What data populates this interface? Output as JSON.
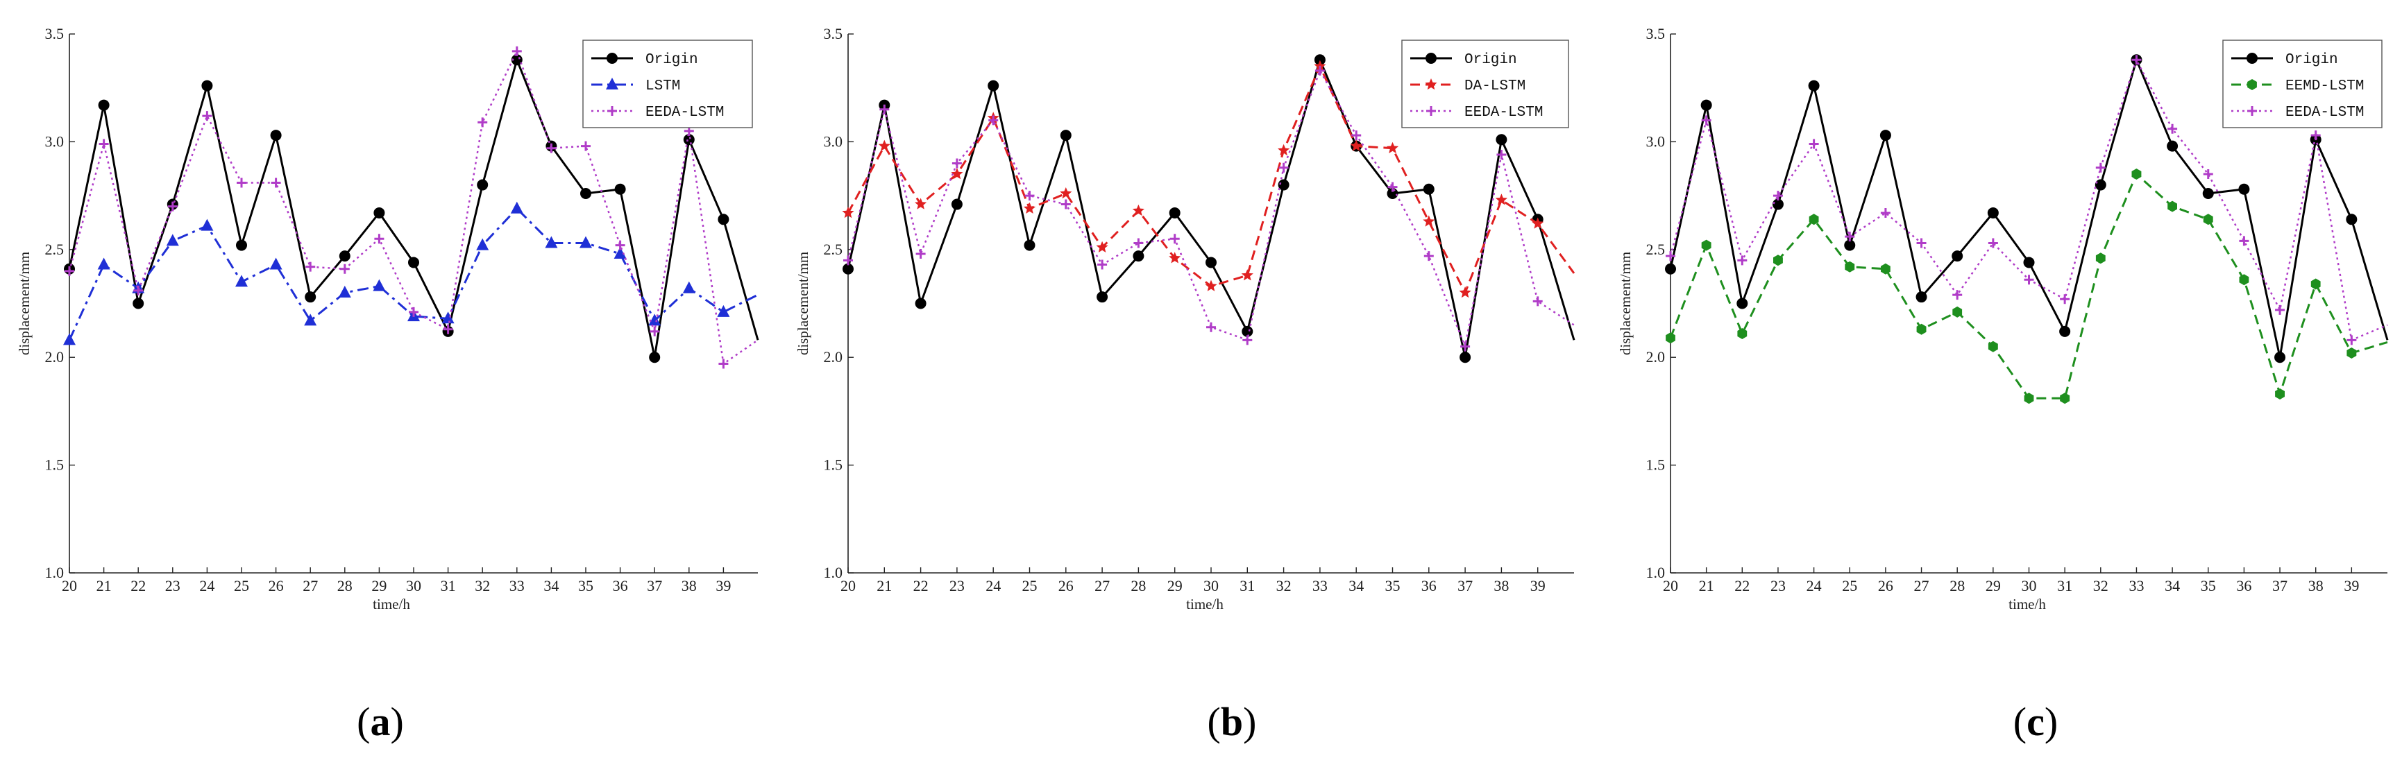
{
  "chart_data": [
    {
      "type": "line",
      "panel_label": "a",
      "xlabel": "time/h",
      "ylabel": "displacement/mm",
      "ylim": [
        1.0,
        3.5
      ],
      "xlim": [
        20,
        40
      ],
      "x_ticks": [
        "20",
        "21",
        "22",
        "23",
        "24",
        "25",
        "26",
        "27",
        "28",
        "29",
        "30",
        "31",
        "32",
        "33",
        "34",
        "35",
        "36",
        "37",
        "38",
        "39"
      ],
      "y_ticks": [
        "1.0",
        "1.5",
        "2.0",
        "2.5",
        "3.0",
        "3.5"
      ],
      "legend_position": "top-right",
      "x": [
        20,
        21,
        22,
        23,
        24,
        25,
        26,
        27,
        28,
        29,
        30,
        31,
        32,
        33,
        34,
        35,
        36,
        37,
        38,
        39,
        40
      ],
      "series": [
        {
          "name": "Origin",
          "color": "#000000",
          "dash": "",
          "marker": "circle",
          "width": 3,
          "values": [
            2.41,
            3.17,
            2.25,
            2.71,
            3.26,
            2.52,
            3.03,
            2.28,
            2.47,
            2.67,
            2.44,
            2.12,
            2.8,
            3.38,
            2.98,
            2.76,
            2.78,
            2.0,
            3.01,
            2.64,
            2.08
          ]
        },
        {
          "name": "LSTM",
          "color": "#1f2fd6",
          "dash": "16 7 4 7",
          "marker": "triangle",
          "width": 3,
          "values": [
            2.08,
            2.43,
            2.32,
            2.54,
            2.61,
            2.35,
            2.43,
            2.17,
            2.3,
            2.33,
            2.19,
            2.18,
            2.52,
            2.69,
            2.53,
            2.53,
            2.48,
            2.17,
            2.32,
            2.21,
            2.29
          ]
        },
        {
          "name": "EEDA-LSTM",
          "color": "#b03cc8",
          "dash": "3 5",
          "marker": "plus",
          "width": 2.5,
          "values": [
            2.4,
            2.99,
            2.31,
            2.7,
            3.12,
            2.81,
            2.81,
            2.42,
            2.41,
            2.55,
            2.21,
            2.13,
            3.09,
            3.42,
            2.97,
            2.98,
            2.52,
            2.12,
            3.05,
            1.97,
            2.08
          ]
        }
      ]
    },
    {
      "type": "line",
      "panel_label": "b",
      "xlabel": "time/h",
      "ylabel": "displacement/mm",
      "ylim": [
        1.0,
        3.5
      ],
      "xlim": [
        20,
        40
      ],
      "x_ticks": [
        "20",
        "21",
        "22",
        "23",
        "24",
        "25",
        "26",
        "27",
        "28",
        "29",
        "30",
        "31",
        "32",
        "33",
        "34",
        "35",
        "36",
        "37",
        "38",
        "39"
      ],
      "y_ticks": [
        "1.0",
        "1.5",
        "2.0",
        "2.5",
        "3.0",
        "3.5"
      ],
      "legend_position": "top-right",
      "x": [
        20,
        21,
        22,
        23,
        24,
        25,
        26,
        27,
        28,
        29,
        30,
        31,
        32,
        33,
        34,
        35,
        36,
        37,
        38,
        39,
        40
      ],
      "series": [
        {
          "name": "Origin",
          "color": "#000000",
          "dash": "",
          "marker": "circle",
          "width": 3,
          "values": [
            2.41,
            3.17,
            2.25,
            2.71,
            3.26,
            2.52,
            3.03,
            2.28,
            2.47,
            2.67,
            2.44,
            2.12,
            2.8,
            3.38,
            2.98,
            2.76,
            2.78,
            2.0,
            3.01,
            2.64,
            2.08
          ]
        },
        {
          "name": "DA-LSTM",
          "color": "#e02020",
          "dash": "14 8",
          "marker": "star",
          "width": 3,
          "values": [
            2.67,
            2.98,
            2.71,
            2.85,
            3.11,
            2.69,
            2.76,
            2.51,
            2.68,
            2.46,
            2.33,
            2.38,
            2.96,
            3.35,
            2.98,
            2.97,
            2.63,
            2.3,
            2.73,
            2.62,
            2.39
          ]
        },
        {
          "name": "EEDA-LSTM",
          "color": "#b03cc8",
          "dash": "3 5",
          "marker": "plus",
          "width": 2.5,
          "values": [
            2.45,
            3.15,
            2.48,
            2.9,
            3.1,
            2.75,
            2.71,
            2.43,
            2.53,
            2.55,
            2.14,
            2.08,
            2.88,
            3.33,
            3.03,
            2.79,
            2.47,
            2.05,
            2.94,
            2.26,
            2.15
          ]
        }
      ]
    },
    {
      "type": "line",
      "panel_label": "c",
      "xlabel": "time/h",
      "ylabel": "displacement/mm",
      "ylim": [
        1.0,
        3.5
      ],
      "xlim": [
        20,
        40
      ],
      "x_ticks": [
        "20",
        "21",
        "22",
        "23",
        "24",
        "25",
        "26",
        "27",
        "28",
        "29",
        "30",
        "31",
        "32",
        "33",
        "34",
        "35",
        "36",
        "37",
        "38",
        "39"
      ],
      "y_ticks": [
        "1.0",
        "1.5",
        "2.0",
        "2.5",
        "3.0",
        "3.5"
      ],
      "legend_position": "top-right",
      "x": [
        20,
        21,
        22,
        23,
        24,
        25,
        26,
        27,
        28,
        29,
        30,
        31,
        32,
        33,
        34,
        35,
        36,
        37,
        38,
        39,
        40
      ],
      "series": [
        {
          "name": "Origin",
          "color": "#000000",
          "dash": "",
          "marker": "circle",
          "width": 3,
          "values": [
            2.41,
            3.17,
            2.25,
            2.71,
            3.26,
            2.52,
            3.03,
            2.28,
            2.47,
            2.67,
            2.44,
            2.12,
            2.8,
            3.38,
            2.98,
            2.76,
            2.78,
            2.0,
            3.01,
            2.64,
            2.08
          ]
        },
        {
          "name": "EEMD-LSTM",
          "color": "#1e8f1e",
          "dash": "14 8",
          "marker": "hexagon",
          "width": 3,
          "values": [
            2.09,
            2.52,
            2.11,
            2.45,
            2.64,
            2.42,
            2.41,
            2.13,
            2.21,
            2.05,
            1.81,
            1.81,
            2.46,
            2.85,
            2.7,
            2.64,
            2.36,
            1.83,
            2.34,
            2.02,
            2.07
          ]
        },
        {
          "name": "EEDA-LSTM",
          "color": "#b03cc8",
          "dash": "3 5",
          "marker": "plus",
          "width": 2.5,
          "values": [
            2.47,
            3.1,
            2.45,
            2.75,
            2.99,
            2.56,
            2.67,
            2.53,
            2.29,
            2.53,
            2.36,
            2.27,
            2.88,
            3.38,
            3.06,
            2.85,
            2.54,
            2.22,
            3.03,
            2.08,
            2.15
          ]
        }
      ]
    }
  ]
}
